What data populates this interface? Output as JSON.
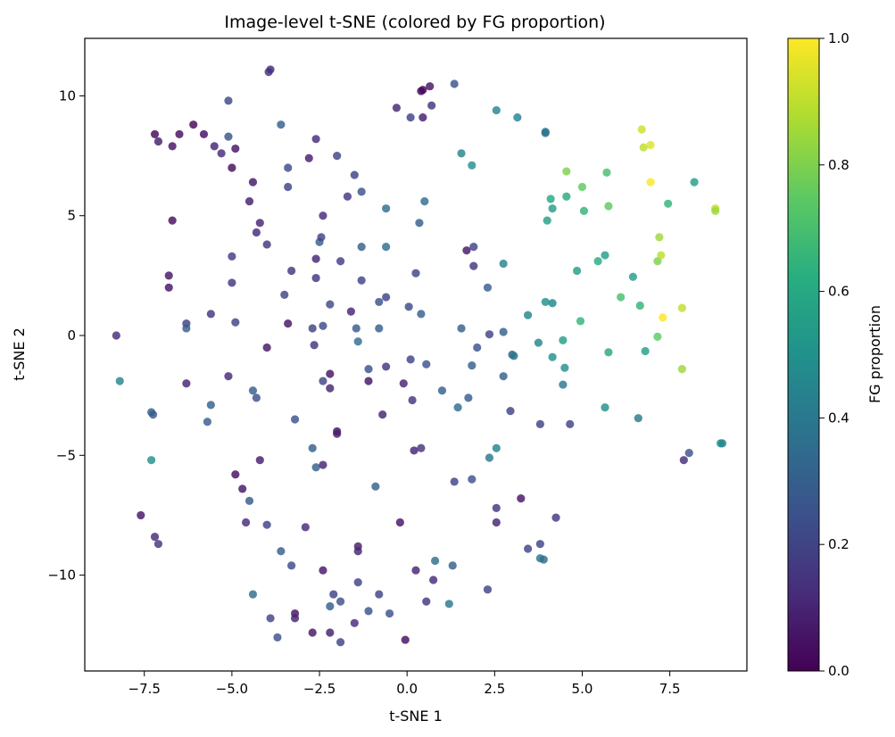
{
  "chart_data": {
    "type": "scatter",
    "title": "Image-level t-SNE (colored by FG proportion)",
    "xlabel": "t-SNE 1",
    "ylabel": "t-SNE 2",
    "xlim": [
      -9.2,
      9.7
    ],
    "ylim": [
      -14.0,
      12.4
    ],
    "x_ticks": [
      -7.5,
      -5.0,
      -2.5,
      0.0,
      2.5,
      5.0,
      7.5
    ],
    "x_tick_labels": [
      "−7.5",
      "−5.0",
      "−2.5",
      "0.0",
      "2.5",
      "5.0",
      "7.5"
    ],
    "y_ticks": [
      -10,
      -5,
      0,
      5,
      10
    ],
    "y_tick_labels": [
      "−10",
      "−5",
      "0",
      "5",
      "10"
    ],
    "grid": false,
    "colormap": "viridis",
    "colorbar": {
      "label": "FG proportion",
      "range": [
        0.0,
        1.0
      ],
      "ticks": [
        0.0,
        0.2,
        0.4,
        0.6,
        0.8,
        1.0
      ],
      "tick_labels": [
        "0.0",
        "0.2",
        "0.4",
        "0.6",
        "0.8",
        "1.0"
      ]
    },
    "points": [
      {
        "x": -8.3,
        "y": 0.0,
        "c": 0.12
      },
      {
        "x": -8.2,
        "y": -1.9,
        "c": 0.45
      },
      {
        "x": -7.2,
        "y": 8.4,
        "c": 0.02
      },
      {
        "x": -7.1,
        "y": 8.1,
        "c": 0.08
      },
      {
        "x": -6.7,
        "y": 7.9,
        "c": 0.05
      },
      {
        "x": -6.5,
        "y": 8.4,
        "c": 0.03
      },
      {
        "x": -6.1,
        "y": 8.8,
        "c": 0.02
      },
      {
        "x": -5.8,
        "y": 8.4,
        "c": 0.04
      },
      {
        "x": -5.5,
        "y": 7.9,
        "c": 0.1
      },
      {
        "x": -5.3,
        "y": 7.6,
        "c": 0.12
      },
      {
        "x": -5.1,
        "y": 8.3,
        "c": 0.25
      },
      {
        "x": -5.1,
        "y": 9.8,
        "c": 0.22
      },
      {
        "x": -4.9,
        "y": 7.8,
        "c": 0.05
      },
      {
        "x": -5.0,
        "y": 7.0,
        "c": 0.03
      },
      {
        "x": -6.7,
        "y": 4.8,
        "c": 0.04
      },
      {
        "x": -6.8,
        "y": 2.5,
        "c": 0.06
      },
      {
        "x": -6.8,
        "y": 2.0,
        "c": 0.05
      },
      {
        "x": -6.3,
        "y": 0.5,
        "c": 0.18
      },
      {
        "x": -6.3,
        "y": 0.3,
        "c": 0.3
      },
      {
        "x": -6.3,
        "y": -2.0,
        "c": 0.1
      },
      {
        "x": -7.3,
        "y": -3.2,
        "c": 0.3
      },
      {
        "x": -7.25,
        "y": -3.3,
        "c": 0.28
      },
      {
        "x": -7.3,
        "y": -5.2,
        "c": 0.5
      },
      {
        "x": -7.6,
        "y": -7.5,
        "c": 0.06
      },
      {
        "x": -7.2,
        "y": -8.4,
        "c": 0.12
      },
      {
        "x": -7.1,
        "y": -8.7,
        "c": 0.15
      },
      {
        "x": -5.6,
        "y": 0.9,
        "c": 0.15
      },
      {
        "x": -5.0,
        "y": 2.2,
        "c": 0.15
      },
      {
        "x": -4.9,
        "y": 0.55,
        "c": 0.2
      },
      {
        "x": -5.0,
        "y": 3.3,
        "c": 0.18
      },
      {
        "x": -5.1,
        "y": -1.7,
        "c": 0.12
      },
      {
        "x": -5.6,
        "y": -2.9,
        "c": 0.3
      },
      {
        "x": -5.7,
        "y": -3.6,
        "c": 0.3
      },
      {
        "x": -4.9,
        "y": -5.8,
        "c": 0.04
      },
      {
        "x": -4.7,
        "y": -6.4,
        "c": 0.06
      },
      {
        "x": -4.5,
        "y": -6.9,
        "c": 0.28
      },
      {
        "x": -4.6,
        "y": -7.8,
        "c": 0.12
      },
      {
        "x": -4.4,
        "y": 6.4,
        "c": 0.06
      },
      {
        "x": -4.5,
        "y": 5.6,
        "c": 0.08
      },
      {
        "x": -4.2,
        "y": 4.7,
        "c": 0.1
      },
      {
        "x": -4.3,
        "y": 4.3,
        "c": 0.12
      },
      {
        "x": -4.0,
        "y": 3.8,
        "c": 0.15
      },
      {
        "x": -3.9,
        "y": 11.1,
        "c": 0.12
      },
      {
        "x": -3.95,
        "y": 11.0,
        "c": 0.14
      },
      {
        "x": -3.6,
        "y": 8.8,
        "c": 0.3
      },
      {
        "x": -3.4,
        "y": 7.0,
        "c": 0.22
      },
      {
        "x": -3.4,
        "y": 6.2,
        "c": 0.2
      },
      {
        "x": -3.5,
        "y": 1.7,
        "c": 0.2
      },
      {
        "x": -3.3,
        "y": 2.7,
        "c": 0.15
      },
      {
        "x": -3.4,
        "y": 0.5,
        "c": 0.05
      },
      {
        "x": -4.0,
        "y": -0.5,
        "c": 0.06
      },
      {
        "x": -4.4,
        "y": -2.3,
        "c": 0.3
      },
      {
        "x": -4.3,
        "y": -2.6,
        "c": 0.25
      },
      {
        "x": -4.2,
        "y": -5.2,
        "c": 0.08
      },
      {
        "x": -4.0,
        "y": -7.9,
        "c": 0.2
      },
      {
        "x": -3.2,
        "y": -3.5,
        "c": 0.25
      },
      {
        "x": -3.6,
        "y": -9.0,
        "c": 0.3
      },
      {
        "x": -3.3,
        "y": -9.6,
        "c": 0.22
      },
      {
        "x": -2.9,
        "y": -8.0,
        "c": 0.12
      },
      {
        "x": -2.8,
        "y": 7.4,
        "c": 0.08
      },
      {
        "x": -2.6,
        "y": 8.2,
        "c": 0.12
      },
      {
        "x": -2.4,
        "y": 5.0,
        "c": 0.12
      },
      {
        "x": -2.5,
        "y": 3.9,
        "c": 0.3
      },
      {
        "x": -2.45,
        "y": 4.1,
        "c": 0.2
      },
      {
        "x": -2.6,
        "y": 3.2,
        "c": 0.1
      },
      {
        "x": -2.6,
        "y": 2.4,
        "c": 0.15
      },
      {
        "x": -2.7,
        "y": 0.3,
        "c": 0.2
      },
      {
        "x": -2.4,
        "y": 0.4,
        "c": 0.22
      },
      {
        "x": -2.65,
        "y": -0.4,
        "c": 0.15
      },
      {
        "x": -2.2,
        "y": -1.6,
        "c": 0.05
      },
      {
        "x": -2.4,
        "y": -1.9,
        "c": 0.2
      },
      {
        "x": -2.2,
        "y": -2.2,
        "c": 0.1
      },
      {
        "x": -2.0,
        "y": 7.5,
        "c": 0.2
      },
      {
        "x": -2.2,
        "y": 1.3,
        "c": 0.22
      },
      {
        "x": -1.9,
        "y": 3.1,
        "c": 0.18
      },
      {
        "x": -1.7,
        "y": 5.8,
        "c": 0.15
      },
      {
        "x": -1.5,
        "y": 6.7,
        "c": 0.2
      },
      {
        "x": -1.3,
        "y": 6.0,
        "c": 0.25
      },
      {
        "x": -1.6,
        "y": 1.0,
        "c": 0.1
      },
      {
        "x": -1.3,
        "y": 3.7,
        "c": 0.3
      },
      {
        "x": -1.3,
        "y": 2.3,
        "c": 0.2
      },
      {
        "x": -1.45,
        "y": 0.3,
        "c": 0.28
      },
      {
        "x": -1.4,
        "y": -0.25,
        "c": 0.35
      },
      {
        "x": -2.0,
        "y": -4.0,
        "c": 0.05
      },
      {
        "x": -2.0,
        "y": -4.1,
        "c": 0.08
      },
      {
        "x": -2.7,
        "y": -4.7,
        "c": 0.3
      },
      {
        "x": -2.6,
        "y": -5.5,
        "c": 0.3
      },
      {
        "x": -2.4,
        "y": -5.4,
        "c": 0.1
      },
      {
        "x": -1.1,
        "y": -1.4,
        "c": 0.25
      },
      {
        "x": -1.1,
        "y": -1.9,
        "c": 0.05
      },
      {
        "x": -2.4,
        "y": -9.8,
        "c": 0.06
      },
      {
        "x": -2.1,
        "y": -10.8,
        "c": 0.2
      },
      {
        "x": -1.9,
        "y": -11.1,
        "c": 0.25
      },
      {
        "x": -2.2,
        "y": -11.3,
        "c": 0.3
      },
      {
        "x": -2.7,
        "y": -12.4,
        "c": 0.06
      },
      {
        "x": -2.2,
        "y": -12.4,
        "c": 0.08
      },
      {
        "x": -1.9,
        "y": -12.8,
        "c": 0.2
      },
      {
        "x": -1.5,
        "y": -12.0,
        "c": 0.12
      },
      {
        "x": -1.4,
        "y": -8.8,
        "c": 0.08
      },
      {
        "x": -1.4,
        "y": -9.0,
        "c": 0.1
      },
      {
        "x": -1.4,
        "y": -10.3,
        "c": 0.2
      },
      {
        "x": -1.1,
        "y": -11.5,
        "c": 0.25
      },
      {
        "x": -0.8,
        "y": -10.8,
        "c": 0.2
      },
      {
        "x": -0.5,
        "y": -11.6,
        "c": 0.25
      },
      {
        "x": -0.9,
        "y": -6.3,
        "c": 0.3
      },
      {
        "x": -0.8,
        "y": 1.4,
        "c": 0.25
      },
      {
        "x": -0.8,
        "y": 0.3,
        "c": 0.3
      },
      {
        "x": -0.6,
        "y": 1.6,
        "c": 0.2
      },
      {
        "x": -0.6,
        "y": 3.7,
        "c": 0.35
      },
      {
        "x": -0.6,
        "y": 5.3,
        "c": 0.35
      },
      {
        "x": -0.7,
        "y": -3.3,
        "c": 0.1
      },
      {
        "x": -0.6,
        "y": -1.3,
        "c": 0.15
      },
      {
        "x": -3.2,
        "y": -11.6,
        "c": 0.05
      },
      {
        "x": -3.2,
        "y": -11.8,
        "c": 0.1
      },
      {
        "x": -3.9,
        "y": -11.8,
        "c": 0.2
      },
      {
        "x": -3.7,
        "y": -12.6,
        "c": 0.25
      },
      {
        "x": -4.4,
        "y": -10.8,
        "c": 0.35
      },
      {
        "x": -0.3,
        "y": 9.5,
        "c": 0.1
      },
      {
        "x": 0.1,
        "y": 9.1,
        "c": 0.2
      },
      {
        "x": 0.4,
        "y": 10.2,
        "c": 0.04
      },
      {
        "x": 0.45,
        "y": 10.25,
        "c": 0.02
      },
      {
        "x": 0.45,
        "y": 9.1,
        "c": 0.08
      },
      {
        "x": 0.65,
        "y": 10.4,
        "c": 0.05
      },
      {
        "x": 0.7,
        "y": 9.6,
        "c": 0.15
      },
      {
        "x": 1.35,
        "y": 10.5,
        "c": 0.25
      },
      {
        "x": 0.5,
        "y": 5.6,
        "c": 0.35
      },
      {
        "x": 0.35,
        "y": 4.7,
        "c": 0.3
      },
      {
        "x": 0.25,
        "y": 2.6,
        "c": 0.2
      },
      {
        "x": 0.05,
        "y": 1.2,
        "c": 0.22
      },
      {
        "x": 0.4,
        "y": 0.9,
        "c": 0.3
      },
      {
        "x": 0.1,
        "y": -1.0,
        "c": 0.2
      },
      {
        "x": 0.55,
        "y": -1.2,
        "c": 0.25
      },
      {
        "x": -0.1,
        "y": -2.0,
        "c": 0.1
      },
      {
        "x": 0.15,
        "y": -2.7,
        "c": 0.15
      },
      {
        "x": 1.0,
        "y": -2.3,
        "c": 0.3
      },
      {
        "x": 0.2,
        "y": -4.8,
        "c": 0.1
      },
      {
        "x": 0.4,
        "y": -4.7,
        "c": 0.15
      },
      {
        "x": -0.2,
        "y": -7.8,
        "c": 0.05
      },
      {
        "x": 0.25,
        "y": -9.8,
        "c": 0.1
      },
      {
        "x": 0.55,
        "y": -11.1,
        "c": 0.15
      },
      {
        "x": 0.8,
        "y": -9.4,
        "c": 0.35
      },
      {
        "x": 0.75,
        "y": -10.2,
        "c": 0.12
      },
      {
        "x": 1.2,
        "y": -11.2,
        "c": 0.4
      },
      {
        "x": 1.3,
        "y": -9.6,
        "c": 0.3
      },
      {
        "x": 1.35,
        "y": -6.1,
        "c": 0.2
      },
      {
        "x": -0.05,
        "y": -12.7,
        "c": 0.04
      },
      {
        "x": 1.55,
        "y": 7.6,
        "c": 0.45
      },
      {
        "x": 1.85,
        "y": 7.1,
        "c": 0.5
      },
      {
        "x": 1.7,
        "y": 3.55,
        "c": 0.06
      },
      {
        "x": 1.9,
        "y": 3.7,
        "c": 0.2
      },
      {
        "x": 1.9,
        "y": 2.9,
        "c": 0.15
      },
      {
        "x": 1.55,
        "y": 0.3,
        "c": 0.3
      },
      {
        "x": 2.0,
        "y": -0.5,
        "c": 0.25
      },
      {
        "x": 1.85,
        "y": -1.25,
        "c": 0.3
      },
      {
        "x": 1.75,
        "y": -2.6,
        "c": 0.3
      },
      {
        "x": 1.45,
        "y": -3.0,
        "c": 0.35
      },
      {
        "x": 1.85,
        "y": -6.0,
        "c": 0.25
      },
      {
        "x": 2.3,
        "y": 2.0,
        "c": 0.3
      },
      {
        "x": 2.35,
        "y": 0.05,
        "c": 0.2
      },
      {
        "x": 2.55,
        "y": 9.4,
        "c": 0.45
      },
      {
        "x": 2.75,
        "y": 3.0,
        "c": 0.45
      },
      {
        "x": 2.75,
        "y": 0.15,
        "c": 0.3
      },
      {
        "x": 2.75,
        "y": -1.7,
        "c": 0.3
      },
      {
        "x": 3.0,
        "y": -0.8,
        "c": 0.3
      },
      {
        "x": 3.05,
        "y": -0.85,
        "c": 0.4
      },
      {
        "x": 2.55,
        "y": -4.7,
        "c": 0.45
      },
      {
        "x": 2.35,
        "y": -5.1,
        "c": 0.4
      },
      {
        "x": 2.55,
        "y": -7.2,
        "c": 0.15
      },
      {
        "x": 2.55,
        "y": -7.8,
        "c": 0.1
      },
      {
        "x": 2.3,
        "y": -10.6,
        "c": 0.2
      },
      {
        "x": 2.95,
        "y": -3.15,
        "c": 0.2
      },
      {
        "x": 3.15,
        "y": 9.1,
        "c": 0.45
      },
      {
        "x": 3.25,
        "y": -6.8,
        "c": 0.05
      },
      {
        "x": 3.45,
        "y": -8.9,
        "c": 0.2
      },
      {
        "x": 3.45,
        "y": 0.85,
        "c": 0.45
      },
      {
        "x": 3.8,
        "y": -3.7,
        "c": 0.2
      },
      {
        "x": 3.75,
        "y": -0.3,
        "c": 0.45
      },
      {
        "x": 3.8,
        "y": -8.7,
        "c": 0.2
      },
      {
        "x": 3.8,
        "y": -9.3,
        "c": 0.4
      },
      {
        "x": 3.9,
        "y": -9.35,
        "c": 0.35
      },
      {
        "x": 3.95,
        "y": 8.5,
        "c": 0.4
      },
      {
        "x": 3.95,
        "y": 8.45,
        "c": 0.38
      },
      {
        "x": 3.95,
        "y": 1.4,
        "c": 0.5
      },
      {
        "x": 4.0,
        "y": 4.8,
        "c": 0.55
      },
      {
        "x": 4.1,
        "y": 5.7,
        "c": 0.6
      },
      {
        "x": 4.15,
        "y": 1.35,
        "c": 0.45
      },
      {
        "x": 4.15,
        "y": 5.3,
        "c": 0.55
      },
      {
        "x": 4.15,
        "y": -0.9,
        "c": 0.5
      },
      {
        "x": 4.25,
        "y": -7.6,
        "c": 0.15
      },
      {
        "x": 4.45,
        "y": -0.2,
        "c": 0.55
      },
      {
        "x": 4.45,
        "y": -2.05,
        "c": 0.4
      },
      {
        "x": 4.5,
        "y": -1.35,
        "c": 0.5
      },
      {
        "x": 4.55,
        "y": 6.85,
        "c": 0.8
      },
      {
        "x": 4.55,
        "y": 5.8,
        "c": 0.6
      },
      {
        "x": 4.65,
        "y": -3.7,
        "c": 0.2
      },
      {
        "x": 4.85,
        "y": 2.7,
        "c": 0.55
      },
      {
        "x": 4.95,
        "y": 0.6,
        "c": 0.65
      },
      {
        "x": 5.0,
        "y": 6.2,
        "c": 0.75
      },
      {
        "x": 5.05,
        "y": 5.2,
        "c": 0.65
      },
      {
        "x": 5.45,
        "y": 3.1,
        "c": 0.6
      },
      {
        "x": 5.65,
        "y": 3.35,
        "c": 0.55
      },
      {
        "x": 5.65,
        "y": -3.0,
        "c": 0.5
      },
      {
        "x": 5.7,
        "y": 6.8,
        "c": 0.7
      },
      {
        "x": 5.75,
        "y": 5.4,
        "c": 0.75
      },
      {
        "x": 5.75,
        "y": -0.7,
        "c": 0.6
      },
      {
        "x": 6.1,
        "y": 1.6,
        "c": 0.7
      },
      {
        "x": 6.45,
        "y": 2.45,
        "c": 0.55
      },
      {
        "x": 6.6,
        "y": -3.45,
        "c": 0.4
      },
      {
        "x": 6.65,
        "y": 1.25,
        "c": 0.65
      },
      {
        "x": 6.7,
        "y": 8.6,
        "c": 0.92
      },
      {
        "x": 6.75,
        "y": 7.85,
        "c": 0.9
      },
      {
        "x": 6.8,
        "y": -0.65,
        "c": 0.55
      },
      {
        "x": 6.95,
        "y": 7.95,
        "c": 0.95
      },
      {
        "x": 6.95,
        "y": 6.4,
        "c": 1.0
      },
      {
        "x": 7.15,
        "y": 3.1,
        "c": 0.8
      },
      {
        "x": 7.15,
        "y": -0.05,
        "c": 0.75
      },
      {
        "x": 7.2,
        "y": 4.1,
        "c": 0.85
      },
      {
        "x": 7.25,
        "y": 3.35,
        "c": 0.9
      },
      {
        "x": 7.3,
        "y": 0.75,
        "c": 1.0
      },
      {
        "x": 7.45,
        "y": 5.5,
        "c": 0.65
      },
      {
        "x": 7.85,
        "y": 1.15,
        "c": 0.9
      },
      {
        "x": 7.85,
        "y": -1.4,
        "c": 0.85
      },
      {
        "x": 7.9,
        "y": -5.2,
        "c": 0.12
      },
      {
        "x": 8.05,
        "y": -4.9,
        "c": 0.25
      },
      {
        "x": 8.2,
        "y": 6.4,
        "c": 0.55
      },
      {
        "x": 8.8,
        "y": 5.3,
        "c": 0.9
      },
      {
        "x": 8.8,
        "y": 5.2,
        "c": 0.85
      },
      {
        "x": 8.95,
        "y": -4.5,
        "c": 0.5
      },
      {
        "x": 9.0,
        "y": -4.5,
        "c": 0.45
      }
    ]
  }
}
